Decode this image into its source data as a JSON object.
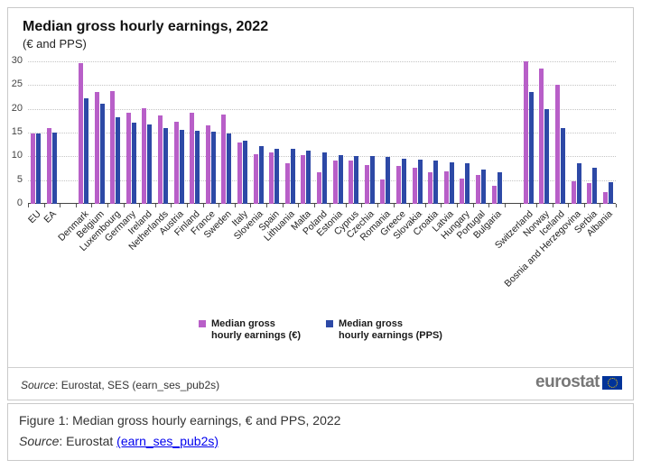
{
  "chart": {
    "title": "Median gross hourly earnings, 2022",
    "subtitle": "(€ and PPS)"
  },
  "chart_data": {
    "type": "bar",
    "title": "Median gross hourly earnings, 2022 (€ and PPS)",
    "ylim": [
      0,
      30
    ],
    "y_ticks": [
      0,
      5,
      10,
      15,
      20,
      25,
      30
    ],
    "grid": true,
    "legend_position": "bottom",
    "categories": [
      "EU",
      "EA",
      "Denmark",
      "Belgium",
      "Luxembourg",
      "Germany",
      "Ireland",
      "Netherlands",
      "Austria",
      "Finland",
      "France",
      "Sweden",
      "Italy",
      "Slovenia",
      "Spain",
      "Lithuania",
      "Malta",
      "Poland",
      "Estonia",
      "Cyprus",
      "Czechia",
      "Romania",
      "Greece",
      "Slovakia",
      "Croatia",
      "Latvia",
      "Hungary",
      "Portugal",
      "Bulgaria",
      "Switzerland",
      "Norway",
      "Iceland",
      "Bosnia and Herzegovina",
      "Serbia",
      "Albania"
    ],
    "gap_after_indices": [
      1,
      28
    ],
    "series": [
      {
        "name": "Median gross hourly earnings (€)",
        "color": "#b85fc8",
        "values": [
          14.9,
          16.0,
          29.7,
          23.6,
          23.8,
          19.1,
          20.1,
          18.7,
          17.3,
          19.2,
          16.5,
          18.8,
          12.9,
          10.4,
          10.8,
          8.6,
          10.3,
          6.7,
          9.2,
          9.1,
          8.1,
          5.2,
          7.9,
          7.6,
          6.7,
          6.8,
          5.4,
          6.1,
          3.8,
          30.0,
          28.4,
          25.0,
          4.7,
          4.3,
          2.4
        ]
      },
      {
        "name": "Median gross hourly earnings (PPS)",
        "color": "#2d49a6",
        "values": [
          14.9,
          15.0,
          22.3,
          21.1,
          18.2,
          17.0,
          16.8,
          16.0,
          15.5,
          15.3,
          15.2,
          14.9,
          13.3,
          12.1,
          11.6,
          11.5,
          11.2,
          10.9,
          10.3,
          10.1,
          10.0,
          9.9,
          9.5,
          9.4,
          9.1,
          8.8,
          8.6,
          7.2,
          6.6,
          23.6,
          20.0,
          15.9,
          8.5,
          7.6,
          4.5
        ]
      }
    ]
  },
  "legend": {
    "items": [
      {
        "line1": "Median gross",
        "line2": "hourly earnings (€)"
      },
      {
        "line1": "Median gross",
        "line2": "hourly earnings (PPS)"
      }
    ]
  },
  "footer": {
    "source_label": "Source",
    "source_rest": ": Eurostat, SES (earn_ses_pub2s)",
    "logo_text": "eurostat"
  },
  "caption": {
    "figure_text": "Figure 1: Median gross hourly earnings, € and PPS, 2022",
    "source_label": "Source",
    "source_text": ": Eurostat ",
    "link_text": "(earn_ses_pub2s)"
  }
}
